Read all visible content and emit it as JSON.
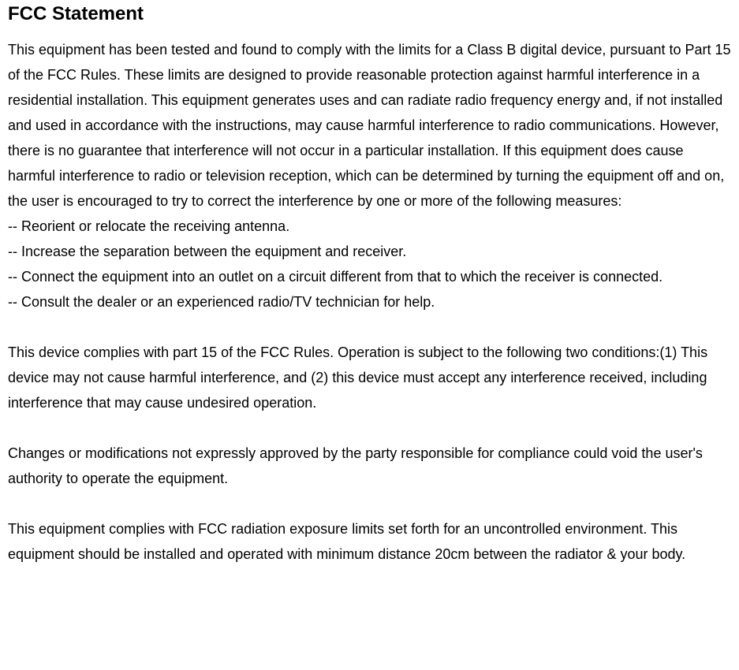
{
  "document": {
    "title": "FCC Statement",
    "title_fontsize": 24,
    "title_fontweight": "bold",
    "body_fontsize": 18,
    "line_height": 32,
    "text_color": "#000000",
    "background_color": "#ffffff",
    "font_family": "Arial",
    "paragraphs": [
      "This equipment has been tested and found to comply with the limits for a Class B digital device, pursuant to Part 15 of the FCC Rules. These limits are designed to provide reasonable protection against harmful interference in a residential installation. This equipment generates uses and can radiate radio frequency energy and, if not installed and used in accordance with the instructions, may cause harmful interference to radio communications. However, there is no guarantee that interference will not occur in a particular installation. If this equipment does cause harmful interference to radio or television reception, which can be determined by turning the equipment off and on, the user is encouraged to try to correct the interference by one or more of the following measures:",
      "-- Reorient or relocate the receiving antenna.",
      "-- Increase the separation between the equipment and receiver.",
      "-- Connect the equipment into an outlet on a circuit different from that to which the receiver is connected.",
      "-- Consult the dealer or an experienced radio/TV technician for help.",
      "",
      "This device complies with part 15 of the FCC Rules. Operation is subject to the following two conditions:(1) This device may not cause harmful interference, and (2) this device must accept any interference received, including interference that may cause undesired operation.",
      "",
      "Changes or modifications not expressly approved by the party responsible for compliance could void the user's authority to operate the equipment.",
      "",
      "This equipment complies with FCC radiation exposure limits set forth for an uncontrolled environment. This equipment should be installed and operated with minimum distance 20cm between the radiator & your body."
    ]
  }
}
